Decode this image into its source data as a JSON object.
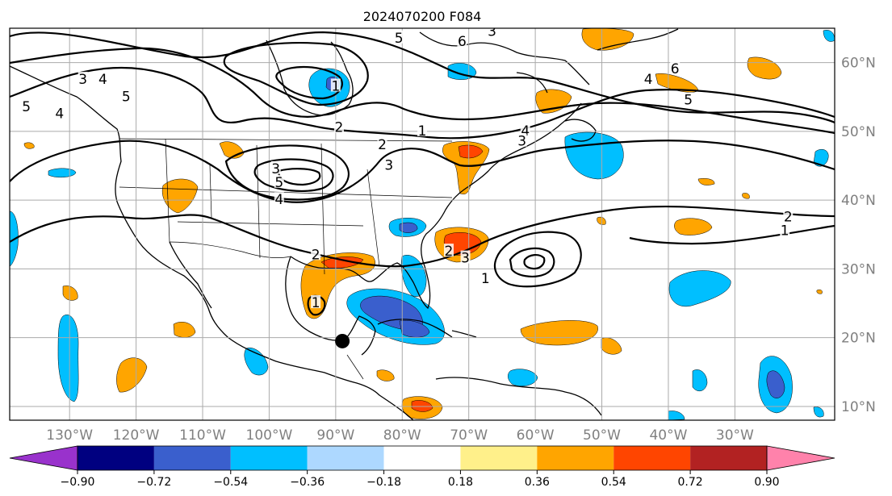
{
  "title": "2024070200 F084",
  "map": {
    "type": "map",
    "projection": "lat-lon",
    "lon_range": [
      -139,
      -15
    ],
    "lat_range": [
      8,
      65
    ],
    "gridlines": true,
    "lon_ticks": [
      {
        "lon": -130,
        "label": "130°W"
      },
      {
        "lon": -120,
        "label": "120°W"
      },
      {
        "lon": -110,
        "label": "110°W"
      },
      {
        "lon": -100,
        "label": "100°W"
      },
      {
        "lon": -90,
        "label": "90°W"
      },
      {
        "lon": -80,
        "label": "80°W"
      },
      {
        "lon": -70,
        "label": "70°W"
      },
      {
        "lon": -60,
        "label": "60°W"
      },
      {
        "lon": -50,
        "label": "50°W"
      },
      {
        "lon": -40,
        "label": "40°W"
      },
      {
        "lon": -30,
        "label": "30°W"
      }
    ],
    "lat_ticks": [
      {
        "lat": 10,
        "label": "10°N"
      },
      {
        "lat": 20,
        "label": "20°N"
      },
      {
        "lat": 30,
        "label": "30°N"
      },
      {
        "lat": 40,
        "label": "40°N"
      },
      {
        "lat": 50,
        "label": "50°N"
      },
      {
        "lat": 60,
        "label": "60°N"
      }
    ],
    "marker": {
      "name": "storm-position-marker",
      "lon": -89,
      "lat": 19.5,
      "color": "#000000"
    },
    "contour_labels": [
      {
        "text": "5",
        "lon": -80.5,
        "lat": 63.5
      },
      {
        "text": "6",
        "lon": -71,
        "lat": 63
      },
      {
        "text": "3",
        "lon": -66.5,
        "lat": 64.5
      },
      {
        "text": "3",
        "lon": -128,
        "lat": 57.5
      },
      {
        "text": "4",
        "lon": -125,
        "lat": 57.5
      },
      {
        "text": "5",
        "lon": -121.5,
        "lat": 55
      },
      {
        "text": "5",
        "lon": -136.5,
        "lat": 53.5
      },
      {
        "text": "4",
        "lon": -131.5,
        "lat": 52.5
      },
      {
        "text": "1",
        "lon": -90,
        "lat": 56.5
      },
      {
        "text": "2",
        "lon": -89.5,
        "lat": 50.5
      },
      {
        "text": "1",
        "lon": -77,
        "lat": 50
      },
      {
        "text": "2",
        "lon": -83,
        "lat": 48
      },
      {
        "text": "3",
        "lon": -82,
        "lat": 45
      },
      {
        "text": "3",
        "lon": -99,
        "lat": 44.5
      },
      {
        "text": "5",
        "lon": -98.5,
        "lat": 42.5
      },
      {
        "text": "4",
        "lon": -98.5,
        "lat": 40
      },
      {
        "text": "4",
        "lon": -61.5,
        "lat": 50
      },
      {
        "text": "3",
        "lon": -62,
        "lat": 48.5
      },
      {
        "text": "4",
        "lon": -43,
        "lat": 57.5
      },
      {
        "text": "5",
        "lon": -37,
        "lat": 54.5
      },
      {
        "text": "6",
        "lon": -39,
        "lat": 59
      },
      {
        "text": "2",
        "lon": -73,
        "lat": 32.5
      },
      {
        "text": "3",
        "lon": -70.5,
        "lat": 31.5
      },
      {
        "text": "1",
        "lon": -67.5,
        "lat": 28.5
      },
      {
        "text": "1",
        "lon": -93,
        "lat": 25
      },
      {
        "text": "2",
        "lon": -93,
        "lat": 32
      },
      {
        "text": "2",
        "lon": -22,
        "lat": 37.5
      },
      {
        "text": "1",
        "lon": -22.5,
        "lat": 35.5
      }
    ]
  },
  "colorbar": {
    "ticks": [
      "−0.90",
      "−0.72",
      "−0.54",
      "−0.36",
      "−0.18",
      "0.18",
      "0.36",
      "0.54",
      "0.72",
      "0.90"
    ],
    "colors": [
      "#9932cc",
      "#000080",
      "#3a5fcd",
      "#00bfff",
      "#add8ff",
      "#ffffff",
      "#fff08a",
      "#ffa500",
      "#ff4500",
      "#b22222",
      "#ff82ab",
      "#ff82ab"
    ]
  }
}
